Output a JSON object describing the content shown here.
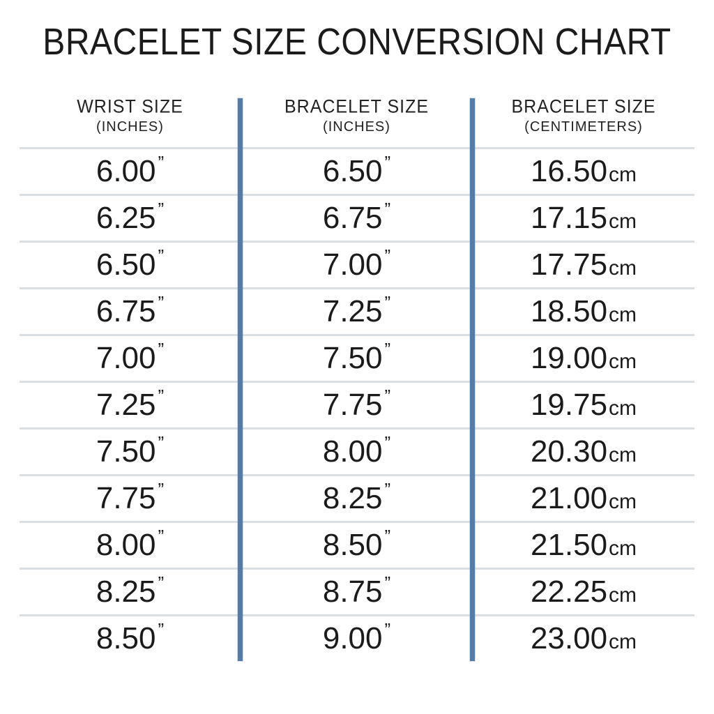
{
  "title": "BRACELET SIZE CONVERSION CHART",
  "units": {
    "inch_mark": "”",
    "cm": "cm"
  },
  "table": {
    "headers": [
      {
        "label": "WRIST SIZE",
        "sub": "(INCHES)"
      },
      {
        "label": "BRACELET SIZE",
        "sub": "(INCHES)"
      },
      {
        "label": "BRACELET SIZE",
        "sub": "(CENTIMETERS)"
      }
    ],
    "rows": [
      {
        "wrist_in": "6.00",
        "bracelet_in": "6.50",
        "bracelet_cm": "16.50"
      },
      {
        "wrist_in": "6.25",
        "bracelet_in": "6.75",
        "bracelet_cm": "17.15"
      },
      {
        "wrist_in": "6.50",
        "bracelet_in": "7.00",
        "bracelet_cm": "17.75"
      },
      {
        "wrist_in": "6.75",
        "bracelet_in": "7.25",
        "bracelet_cm": "18.50"
      },
      {
        "wrist_in": "7.00",
        "bracelet_in": "7.50",
        "bracelet_cm": "19.00"
      },
      {
        "wrist_in": "7.25",
        "bracelet_in": "7.75",
        "bracelet_cm": "19.75"
      },
      {
        "wrist_in": "7.50",
        "bracelet_in": "8.00",
        "bracelet_cm": "20.30"
      },
      {
        "wrist_in": "7.75",
        "bracelet_in": "8.25",
        "bracelet_cm": "21.00"
      },
      {
        "wrist_in": "8.00",
        "bracelet_in": "8.50",
        "bracelet_cm": "21.50"
      },
      {
        "wrist_in": "8.25",
        "bracelet_in": "8.75",
        "bracelet_cm": "22.25"
      },
      {
        "wrist_in": "8.50",
        "bracelet_in": "9.00",
        "bracelet_cm": "23.00"
      }
    ]
  },
  "colors": {
    "divider_blue": "#537da8",
    "row_line": "#d9dfe2",
    "text": "#1b1b1b"
  },
  "chart_data": {
    "type": "table",
    "title": "BRACELET SIZE CONVERSION CHART",
    "columns": [
      "WRIST SIZE (INCHES)",
      "BRACELET SIZE (INCHES)",
      "BRACELET SIZE (CENTIMETERS)"
    ],
    "rows": [
      [
        6.0,
        6.5,
        16.5
      ],
      [
        6.25,
        6.75,
        17.15
      ],
      [
        6.5,
        7.0,
        17.75
      ],
      [
        6.75,
        7.25,
        18.5
      ],
      [
        7.0,
        7.5,
        19.0
      ],
      [
        7.25,
        7.75,
        19.75
      ],
      [
        7.5,
        8.0,
        20.3
      ],
      [
        7.75,
        8.25,
        21.0
      ],
      [
        8.0,
        8.5,
        21.5
      ],
      [
        8.25,
        8.75,
        22.25
      ],
      [
        8.5,
        9.0,
        23.0
      ]
    ]
  }
}
